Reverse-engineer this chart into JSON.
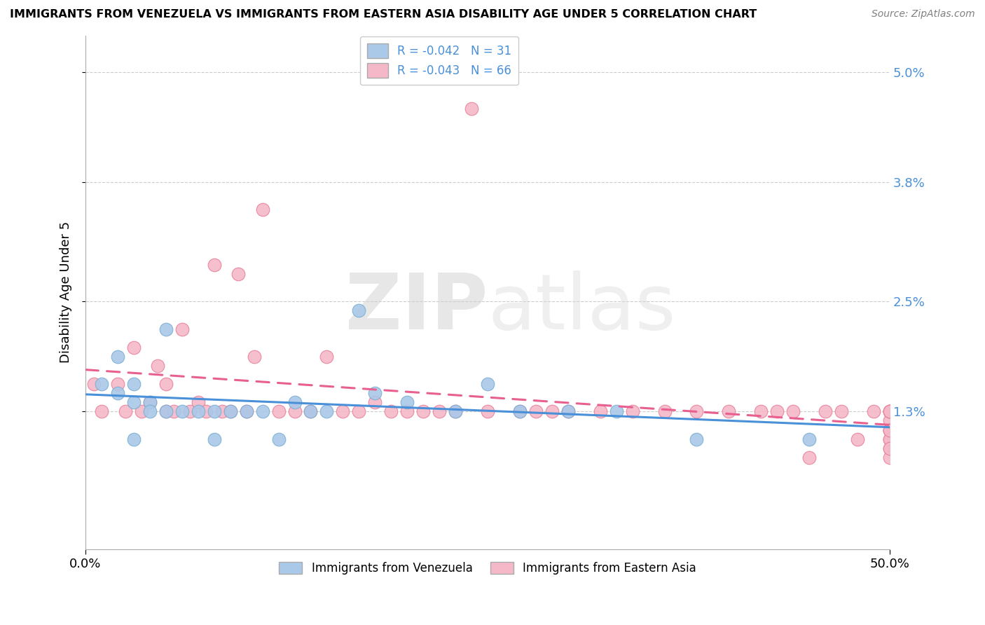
{
  "title": "IMMIGRANTS FROM VENEZUELA VS IMMIGRANTS FROM EASTERN ASIA DISABILITY AGE UNDER 5 CORRELATION CHART",
  "source": "Source: ZipAtlas.com",
  "ylabel": "Disability Age Under 5",
  "xmin": 0.0,
  "xmax": 0.5,
  "ymin": -0.002,
  "ymax": 0.054,
  "yticks": [
    0.013,
    0.025,
    0.038,
    0.05
  ],
  "ytick_labels": [
    "1.3%",
    "2.5%",
    "3.8%",
    "5.0%"
  ],
  "xticks": [
    0.0,
    0.5
  ],
  "xtick_labels": [
    "0.0%",
    "50.0%"
  ],
  "venezuela_color": "#aac8e8",
  "venezuela_edge": "#7aaed4",
  "eastern_asia_color": "#f5b8c8",
  "eastern_asia_edge": "#e8809a",
  "legend_blue_fill": "#aac8e8",
  "legend_pink_fill": "#f5b8c8",
  "R_venezuela": -0.042,
  "N_venezuela": 31,
  "R_eastern_asia": -0.043,
  "N_eastern_asia": 66,
  "line_color_venezuela": "#4a90d9",
  "line_color_eastern_asia": "#e86090",
  "background_color": "#ffffff",
  "grid_color": "#cccccc",
  "venezuela_x": [
    0.01,
    0.02,
    0.02,
    0.03,
    0.03,
    0.03,
    0.04,
    0.04,
    0.05,
    0.05,
    0.06,
    0.07,
    0.08,
    0.08,
    0.09,
    0.1,
    0.11,
    0.12,
    0.13,
    0.14,
    0.15,
    0.17,
    0.18,
    0.2,
    0.23,
    0.25,
    0.27,
    0.3,
    0.33,
    0.38,
    0.45
  ],
  "venezuela_y": [
    0.016,
    0.019,
    0.015,
    0.014,
    0.01,
    0.016,
    0.014,
    0.013,
    0.022,
    0.013,
    0.013,
    0.013,
    0.013,
    0.01,
    0.013,
    0.013,
    0.013,
    0.01,
    0.014,
    0.013,
    0.013,
    0.024,
    0.015,
    0.014,
    0.013,
    0.016,
    0.013,
    0.013,
    0.013,
    0.01,
    0.01
  ],
  "eastern_asia_x": [
    0.005,
    0.01,
    0.02,
    0.025,
    0.03,
    0.035,
    0.04,
    0.045,
    0.05,
    0.05,
    0.055,
    0.06,
    0.065,
    0.07,
    0.075,
    0.08,
    0.085,
    0.09,
    0.095,
    0.1,
    0.105,
    0.11,
    0.12,
    0.13,
    0.14,
    0.15,
    0.16,
    0.17,
    0.18,
    0.19,
    0.2,
    0.21,
    0.22,
    0.23,
    0.24,
    0.25,
    0.27,
    0.28,
    0.29,
    0.3,
    0.32,
    0.34,
    0.36,
    0.38,
    0.4,
    0.42,
    0.43,
    0.44,
    0.45,
    0.46,
    0.47,
    0.48,
    0.49,
    0.5,
    0.5,
    0.5,
    0.5,
    0.5,
    0.5,
    0.5,
    0.5,
    0.5,
    0.5,
    0.5,
    0.5,
    0.5
  ],
  "eastern_asia_y": [
    0.016,
    0.013,
    0.016,
    0.013,
    0.02,
    0.013,
    0.014,
    0.018,
    0.013,
    0.016,
    0.013,
    0.022,
    0.013,
    0.014,
    0.013,
    0.029,
    0.013,
    0.013,
    0.028,
    0.013,
    0.019,
    0.035,
    0.013,
    0.013,
    0.013,
    0.019,
    0.013,
    0.013,
    0.014,
    0.013,
    0.013,
    0.013,
    0.013,
    0.013,
    0.046,
    0.013,
    0.013,
    0.013,
    0.013,
    0.013,
    0.013,
    0.013,
    0.013,
    0.013,
    0.013,
    0.013,
    0.013,
    0.013,
    0.008,
    0.013,
    0.013,
    0.01,
    0.013,
    0.013,
    0.011,
    0.013,
    0.01,
    0.009,
    0.012,
    0.011,
    0.01,
    0.008,
    0.013,
    0.011,
    0.009,
    0.013
  ]
}
